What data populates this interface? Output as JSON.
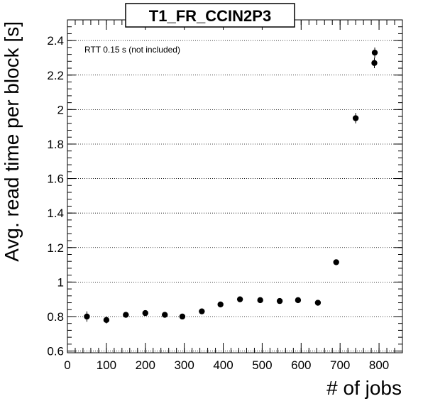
{
  "chart_data": {
    "type": "scatter",
    "title": "T1_FR_CCIN2P3",
    "xlabel": "# of jobs",
    "ylabel": "Avg. read time per block [s]",
    "annotation": "RTT 0.15 s (not included)",
    "xlim": [
      0,
      860
    ],
    "ylim": [
      0.59,
      2.52
    ],
    "x_ticks": [
      0,
      100,
      200,
      300,
      400,
      500,
      600,
      700,
      800
    ],
    "y_ticks": [
      0.6,
      0.8,
      1,
      1.2,
      1.4,
      1.6,
      1.8,
      2,
      2.2,
      2.4
    ],
    "grid": "horizontal dotted",
    "series": [
      {
        "points": [
          {
            "x": 50,
            "y": 0.8,
            "err": 0.03
          },
          {
            "x": 100,
            "y": 0.78,
            "err": 0.02
          },
          {
            "x": 150,
            "y": 0.81,
            "err": 0.015
          },
          {
            "x": 200,
            "y": 0.82,
            "err": 0.015
          },
          {
            "x": 250,
            "y": 0.81,
            "err": 0.01
          },
          {
            "x": 295,
            "y": 0.8,
            "err": 0.01
          },
          {
            "x": 345,
            "y": 0.83,
            "err": 0.01
          },
          {
            "x": 393,
            "y": 0.87,
            "err": 0.01
          },
          {
            "x": 443,
            "y": 0.9,
            "err": 0.01
          },
          {
            "x": 495,
            "y": 0.895,
            "err": 0.01
          },
          {
            "x": 545,
            "y": 0.89,
            "err": 0.01
          },
          {
            "x": 592,
            "y": 0.895,
            "err": 0.01
          },
          {
            "x": 643,
            "y": 0.88,
            "err": 0.01
          },
          {
            "x": 690,
            "y": 1.115,
            "err": 0.01
          },
          {
            "x": 740,
            "y": 1.95,
            "err": 0.03
          },
          {
            "x": 788,
            "y": 2.27,
            "err": 0.03
          },
          {
            "x": 789,
            "y": 2.33,
            "err": 0.03
          }
        ]
      }
    ]
  }
}
